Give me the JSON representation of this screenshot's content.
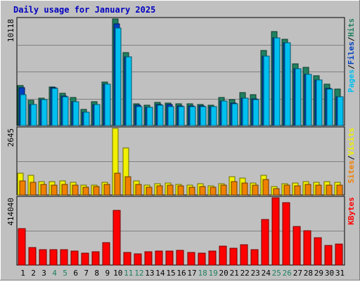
{
  "chart_data": [
    {
      "type": "bar",
      "title": "Daily usage for January 2025",
      "panel": "hits-files-pages",
      "categories": [
        "1",
        "2",
        "3",
        "4",
        "5",
        "6",
        "7",
        "8",
        "9",
        "10",
        "11",
        "12",
        "13",
        "14",
        "15",
        "16",
        "17",
        "18",
        "19",
        "20",
        "21",
        "22",
        "23",
        "24",
        "25",
        "26",
        "27",
        "28",
        "29",
        "30",
        "31"
      ],
      "ylabel_top": "10118",
      "ylim": [
        0,
        10118
      ],
      "series": [
        {
          "name": "Hits",
          "color": "#208060",
          "values": [
            3820,
            2370,
            2600,
            3640,
            3080,
            2680,
            1520,
            2290,
            4110,
            10118,
            6900,
            2070,
            1940,
            2200,
            2120,
            2080,
            2040,
            2000,
            1950,
            2660,
            2470,
            3140,
            2950,
            7090,
            8920,
            8160,
            5850,
            5550,
            4730,
            3920,
            3440
          ]
        },
        {
          "name": "Files",
          "color": "#0040c0",
          "values": [
            3620,
            2020,
            2470,
            3600,
            2790,
            2270,
            1250,
            1970,
            3920,
            9620,
            6520,
            1900,
            1700,
            2030,
            1970,
            1840,
            1890,
            1840,
            1770,
            2350,
            2100,
            2620,
            2560,
            6590,
            8320,
            7860,
            5400,
            4860,
            4340,
            3550,
            2740
          ]
        },
        {
          "name": "Pages",
          "color": "#00c0f0",
          "values": [
            2920,
            2020,
            2470,
            3540,
            2720,
            2270,
            1250,
            1970,
            3920,
            9250,
            6520,
            1830,
            1700,
            1900,
            1820,
            1770,
            1830,
            1770,
            1770,
            2350,
            2050,
            2620,
            2450,
            6590,
            8320,
            7860,
            5400,
            4860,
            4340,
            3480,
            2740
          ]
        }
      ]
    },
    {
      "type": "bar",
      "panel": "visits-sites",
      "categories": [
        "1",
        "2",
        "3",
        "4",
        "5",
        "6",
        "7",
        "8",
        "9",
        "10",
        "11",
        "12",
        "13",
        "14",
        "15",
        "16",
        "17",
        "18",
        "19",
        "20",
        "21",
        "22",
        "23",
        "24",
        "25",
        "26",
        "27",
        "28",
        "29",
        "30",
        "31"
      ],
      "ylabel_top": "2645",
      "ylim": [
        0,
        2645
      ],
      "series": [
        {
          "name": "Visits",
          "color": "#f0f000",
          "values": [
            850,
            780,
            520,
            530,
            550,
            490,
            380,
            400,
            500,
            2645,
            1870,
            560,
            380,
            440,
            470,
            430,
            390,
            440,
            370,
            450,
            710,
            670,
            480,
            780,
            330,
            440,
            460,
            520,
            510,
            520,
            500
          ]
        },
        {
          "name": "Sites",
          "color": "#f08000",
          "values": [
            550,
            500,
            420,
            400,
            410,
            390,
            320,
            330,
            410,
            850,
            720,
            430,
            300,
            350,
            380,
            350,
            310,
            340,
            300,
            380,
            520,
            460,
            400,
            600,
            260,
            380,
            360,
            410,
            390,
            400,
            380
          ]
        }
      ]
    },
    {
      "type": "bar",
      "panel": "kbytes",
      "categories": [
        "1",
        "2",
        "3",
        "4",
        "5",
        "6",
        "7",
        "8",
        "9",
        "10",
        "11",
        "12",
        "13",
        "14",
        "15",
        "16",
        "17",
        "18",
        "19",
        "20",
        "21",
        "22",
        "23",
        "24",
        "25",
        "26",
        "27",
        "28",
        "29",
        "30",
        "31"
      ],
      "ylabel_top": "414040",
      "ylim": [
        0,
        414040
      ],
      "series": [
        {
          "name": "KBytes",
          "color": "#ff0000",
          "values": [
            225000,
            108000,
            95000,
            95000,
            93000,
            88000,
            74000,
            82000,
            138000,
            335000,
            77000,
            71000,
            82000,
            88000,
            86000,
            91000,
            76000,
            75000,
            87000,
            116000,
            104000,
            127000,
            95000,
            279000,
            414040,
            385000,
            238000,
            212000,
            167000,
            122000,
            129000
          ]
        }
      ]
    }
  ],
  "legend_right": {
    "top": [
      {
        "text": "Pages",
        "color": "#00c0f0"
      },
      {
        "text": "/",
        "color": "#000000"
      },
      {
        "text": "Files",
        "color": "#0040c0"
      },
      {
        "text": "/",
        "color": "#000000"
      },
      {
        "text": "Hits",
        "color": "#208060"
      }
    ],
    "middle": [
      {
        "text": "Sites",
        "color": "#f08000"
      },
      {
        "text": "/",
        "color": "#000000"
      },
      {
        "text": "Visits",
        "color": "#f0f000"
      }
    ],
    "bottom": [
      {
        "text": "KBytes",
        "color": "#ff0000"
      }
    ]
  },
  "weekend_days": [
    "4",
    "5",
    "11",
    "12",
    "18",
    "19",
    "25",
    "26"
  ],
  "colors": {
    "background": "#c0c0c0",
    "title": "#0000c0",
    "weekday_label": "#000000",
    "weekend_label": "#208060",
    "grid": "#808080"
  }
}
